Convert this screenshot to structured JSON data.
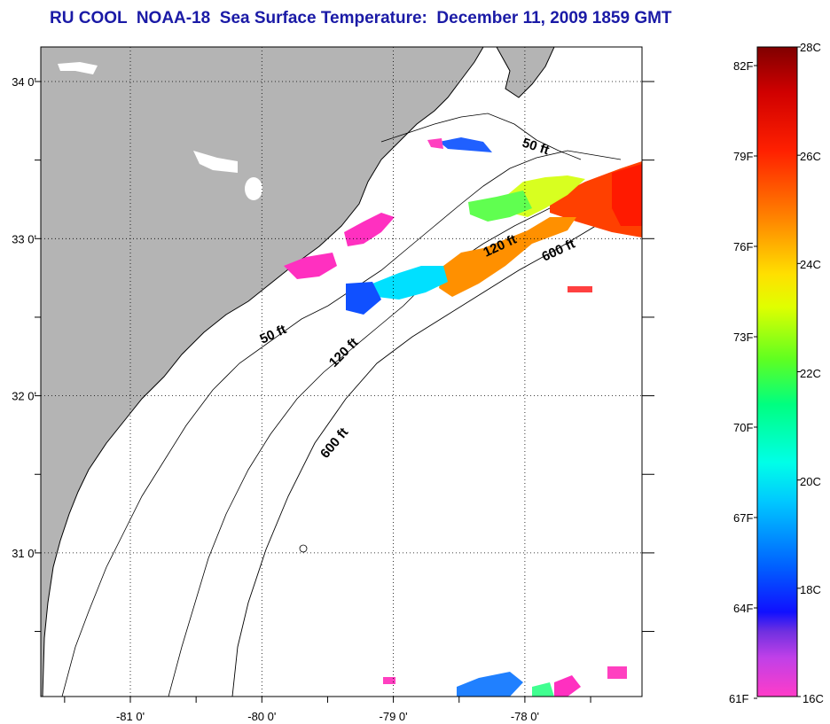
{
  "title": "RU COOL  NOAA-18  Sea Surface Temperature:  December 11, 2009 1859 GMT",
  "map": {
    "lon_ticks": [
      {
        "lon": -81,
        "label": "-81 0'"
      },
      {
        "lon": -80,
        "label": "-80 0'"
      },
      {
        "lon": -79,
        "label": "-79 0'"
      },
      {
        "lon": -78,
        "label": "-78 0'"
      }
    ],
    "lat_ticks": [
      {
        "lat": 34,
        "label": "34 0'"
      },
      {
        "lat": 33,
        "label": "33 0'"
      },
      {
        "lat": 32,
        "label": "32 0'"
      },
      {
        "lat": 31,
        "label": "31 0'"
      }
    ],
    "contour_labels": [
      "50 ft",
      "120 ft",
      "600 ft",
      "50 ft",
      "120 ft",
      "600 ft"
    ],
    "land_color": "#b4b4b4",
    "ocean_color": "#ffffff"
  },
  "colorbar": {
    "fahrenheit": [
      "82F",
      "79F",
      "76F",
      "73F",
      "70F",
      "67F",
      "64F",
      "61F"
    ],
    "celsius": [
      "28C",
      "26C",
      "24C",
      "22C",
      "20C",
      "18C",
      "16C"
    ]
  }
}
